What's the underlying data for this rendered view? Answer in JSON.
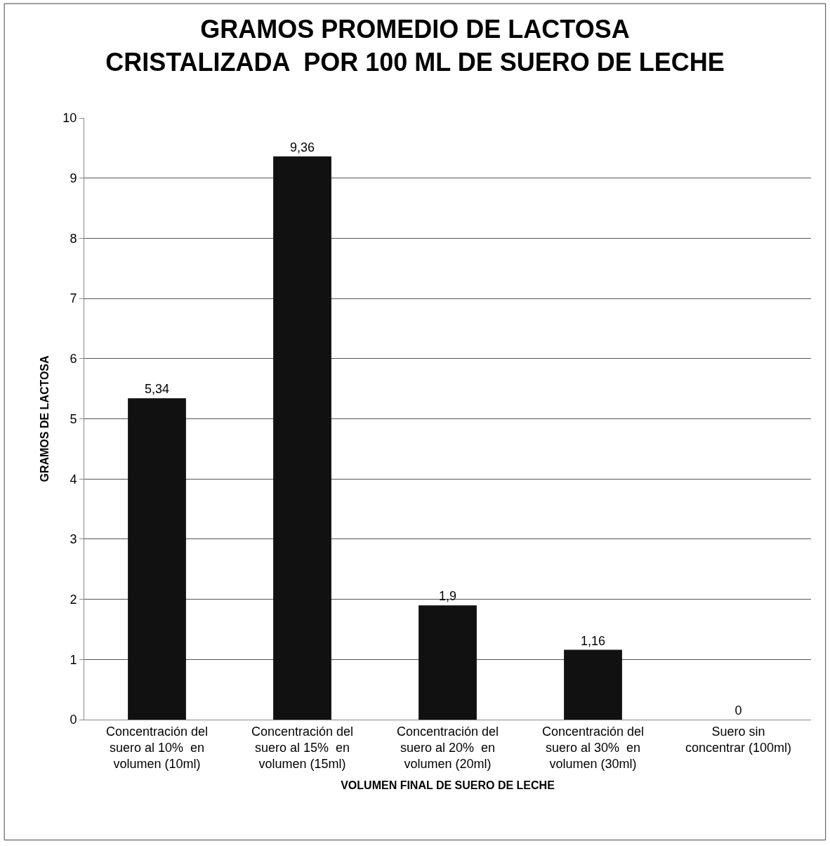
{
  "chart_data": {
    "type": "bar",
    "title": "GRAMOS PROMEDIO DE LACTOSA\nCRISTALIZADA  POR 100 ML DE SUERO DE LECHE",
    "xlabel": "VOLUMEN FINAL DE SUERO DE LECHE",
    "ylabel": "GRAMOS DE LACTOSA",
    "categories": [
      "Concentración del\nsuero al 10%  en\nvolumen (10ml)",
      "Concentración del\nsuero al 15%  en\nvolumen (15ml)",
      "Concentración del\nsuero al 20%  en\nvolumen (20ml)",
      "Concentración del\nsuero al 30%  en\nvolumen (30ml)",
      "Suero sin\nconcentrar (100ml)"
    ],
    "values": [
      5.34,
      9.36,
      1.9,
      1.16,
      0
    ],
    "value_labels": [
      "5,34",
      "9,36",
      "1,9",
      "1,16",
      "0"
    ],
    "color": "#111111",
    "ylim": [
      0,
      10
    ],
    "yticks": [
      0,
      1,
      2,
      3,
      4,
      5,
      6,
      7,
      8,
      9,
      10
    ],
    "grid": "y",
    "legend": false
  }
}
